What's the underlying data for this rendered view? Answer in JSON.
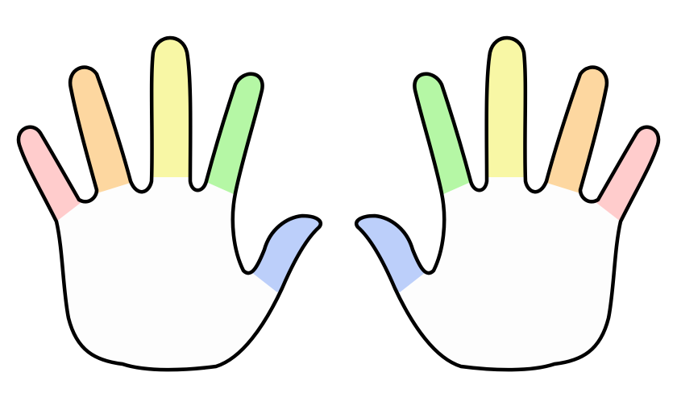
{
  "colors": {
    "outline": "#000000",
    "palm": "#fdfdfd",
    "pinky": "#ffcccc",
    "ring": "#fdd7a0",
    "middle": "#f8f7a5",
    "index": "#b5f7a5",
    "thumb": "#bccffa"
  },
  "hands": [
    {
      "side": "left",
      "fingers": [
        "pinky",
        "ring",
        "middle",
        "index",
        "thumb"
      ]
    },
    {
      "side": "right",
      "fingers": [
        "thumb",
        "index",
        "middle",
        "ring",
        "pinky"
      ]
    }
  ]
}
